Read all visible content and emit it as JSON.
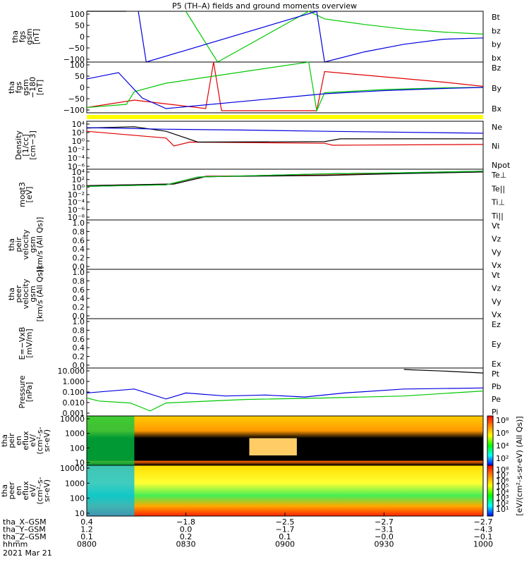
{
  "title": "P5 (TH–A) fields and ground moments overview",
  "colors": {
    "black": "#000000",
    "red": "#e00000",
    "green": "#00c800",
    "blue": "#0000e0",
    "yellow": "#ffff00"
  },
  "chart_data": {
    "type": "line",
    "time_range": [
      "0800",
      "1000"
    ],
    "panels": [
      {
        "id": "fgs",
        "ylabel": [
          "tha",
          "fgs",
          "gsm",
          "[nT]"
        ],
        "yscale": "linear",
        "ylim": [
          -100,
          100
        ],
        "yticks": [
          "100",
          "50",
          "0",
          "−50",
          "−100"
        ],
        "series": [
          {
            "name": "Bt",
            "color": "#000000",
            "points": [
              [
                0.0,
                100
              ],
              [
                0.1,
                100
              ]
            ]
          },
          {
            "name": "bz",
            "color": "#e00000",
            "points": []
          },
          {
            "name": "by",
            "color": "#00c800",
            "points": [
              [
                0.25,
                100
              ],
              [
                0.33,
                -100
              ],
              [
                0.56,
                100
              ],
              [
                0.6,
                70
              ],
              [
                0.7,
                48
              ],
              [
                0.8,
                30
              ],
              [
                0.9,
                18
              ],
              [
                1.0,
                10
              ]
            ]
          },
          {
            "name": "bx",
            "color": "#0000e0",
            "points": [
              [
                0.13,
                100
              ],
              [
                0.15,
                -100
              ],
              [
                0.58,
                100
              ],
              [
                0.6,
                -100
              ],
              [
                0.7,
                -60
              ],
              [
                0.8,
                -30
              ],
              [
                0.9,
                -10
              ],
              [
                1.0,
                -5
              ]
            ]
          }
        ]
      },
      {
        "id": "fgs_dsl",
        "ylabel": [
          "tha",
          "fgs",
          "gsm",
          "−180",
          "[nT]"
        ],
        "yscale": "linear",
        "ylim": [
          -120,
          120
        ],
        "yticks": [
          "100",
          "50",
          "0",
          "−50",
          "−100"
        ],
        "series": [
          {
            "name": "Bz",
            "color": "#e00000",
            "points": [
              [
                0.0,
                -95
              ],
              [
                0.12,
                -60
              ],
              [
                0.3,
                -100
              ],
              [
                0.32,
                120
              ],
              [
                0.34,
                -110
              ],
              [
                0.58,
                -110
              ],
              [
                0.6,
                75
              ],
              [
                0.75,
                50
              ],
              [
                0.9,
                25
              ],
              [
                1.0,
                5
              ]
            ]
          },
          {
            "name": "By",
            "color": "#00c800",
            "points": [
              [
                0.0,
                -95
              ],
              [
                0.1,
                -80
              ],
              [
                0.12,
                -20
              ],
              [
                0.2,
                20
              ],
              [
                0.56,
                120
              ],
              [
                0.58,
                -110
              ],
              [
                0.6,
                -25
              ],
              [
                0.75,
                -10
              ],
              [
                0.9,
                -2
              ],
              [
                1.0,
                0
              ]
            ]
          },
          {
            "name": "Bx",
            "color": "#0000e0",
            "points": [
              [
                0.0,
                40
              ],
              [
                0.08,
                70
              ],
              [
                0.14,
                -50
              ],
              [
                0.2,
                -100
              ],
              [
                0.6,
                -30
              ],
              [
                0.75,
                -15
              ],
              [
                0.9,
                -5
              ],
              [
                1.0,
                0
              ]
            ]
          }
        ]
      },
      {
        "id": "density",
        "ylabel": [
          "Density",
          "[1/cc]",
          "[cm−3]"
        ],
        "yscale": "log",
        "ylim_exp": [
          -7,
          5
        ],
        "yticks": [
          "10⁴",
          "10²",
          "10⁰",
          "10⁻²",
          "10⁻⁴",
          "10⁻⁶"
        ],
        "series": [
          {
            "name": "Ne",
            "color": "#e00000",
            "points": [
              [
                0.0,
                2.5
              ],
              [
                0.2,
                0.8
              ],
              [
                0.22,
                -1.2
              ],
              [
                0.26,
                -0.2
              ],
              [
                0.6,
                -0.5
              ],
              [
                0.62,
                -1.0
              ],
              [
                1.0,
                -0.8
              ]
            ]
          },
          {
            "name": "Ni",
            "color": "#000000",
            "points": [
              [
                0.0,
                3.3
              ],
              [
                0.12,
                3.6
              ],
              [
                0.2,
                2.5
              ],
              [
                0.28,
                -0.2
              ],
              [
                0.6,
                -0.1
              ],
              [
                0.64,
                0.6
              ],
              [
                1.0,
                0.6
              ]
            ]
          },
          {
            "name": "Npot",
            "color": "#0000e0",
            "points": [
              [
                0.0,
                3.4
              ],
              [
                0.2,
                3.0
              ],
              [
                0.4,
                2.8
              ],
              [
                0.6,
                2.5
              ],
              [
                1.0,
                2.0
              ]
            ]
          }
        ]
      },
      {
        "id": "temperature",
        "ylabel": [
          "moqt3",
          "[eV]"
        ],
        "yscale": "log",
        "ylim_exp": [
          -8,
          5
        ],
        "yticks": [
          "10⁴",
          "10²",
          "10⁰",
          "10⁻²",
          "10⁻⁴",
          "10⁻⁶",
          "10⁻⁸"
        ],
        "series": [
          {
            "name": "Te⊥",
            "color": "#e00000",
            "points": [
              [
                0.0,
                0.8
              ],
              [
                0.22,
                1.2
              ],
              [
                0.3,
                3.2
              ],
              [
                0.6,
                3.5
              ],
              [
                0.8,
                4.0
              ],
              [
                1.0,
                4.3
              ]
            ]
          },
          {
            "name": "Te||",
            "color": "#000000",
            "points": [
              [
                0.0,
                0.8
              ],
              [
                0.22,
                1.2
              ],
              [
                0.3,
                3.1
              ],
              [
                0.6,
                3.4
              ],
              [
                0.8,
                3.9
              ],
              [
                1.0,
                4.3
              ]
            ]
          },
          {
            "name": "Ti⊥",
            "color": "#0000e0",
            "points": [
              [
                0.0,
                0.6
              ],
              [
                0.2,
                1.0
              ],
              [
                0.28,
                3.0
              ],
              [
                0.6,
                3.8
              ],
              [
                0.8,
                4.1
              ],
              [
                1.0,
                4.5
              ]
            ]
          },
          {
            "name": "Ti||",
            "color": "#00c800",
            "points": [
              [
                0.0,
                0.6
              ],
              [
                0.2,
                1.0
              ],
              [
                0.28,
                3.0
              ],
              [
                0.6,
                3.8
              ],
              [
                0.8,
                4.1
              ],
              [
                1.0,
                4.5
              ]
            ]
          }
        ]
      },
      {
        "id": "peir_velocity",
        "ylabel": [
          "tha",
          "peir",
          "velocity",
          "gsm",
          "[km/s (All Qs)]"
        ],
        "yscale": "linear",
        "ylim": [
          0,
          1
        ],
        "yticks": [
          "1.0",
          "0.8",
          "0.6",
          "0.4",
          "0.2",
          "0.0"
        ],
        "series": [
          {
            "name": "Vt",
            "color": "#000000",
            "points": []
          },
          {
            "name": "Vz",
            "color": "#e00000",
            "points": []
          },
          {
            "name": "Vy",
            "color": "#00c800",
            "points": []
          },
          {
            "name": "Vx",
            "color": "#0000e0",
            "points": []
          }
        ]
      },
      {
        "id": "peer_velocity",
        "ylabel": [
          "tha",
          "peer",
          "velocity",
          "gsm",
          "[km/s (All Qs)]"
        ],
        "yscale": "linear",
        "ylim": [
          0,
          1
        ],
        "yticks": [
          "1.0",
          "0.8",
          "0.6",
          "0.4",
          "0.2",
          "0.0"
        ],
        "series": [
          {
            "name": "Vt",
            "color": "#000000",
            "points": []
          },
          {
            "name": "Vz",
            "color": "#e00000",
            "points": []
          },
          {
            "name": "Vy",
            "color": "#00c800",
            "points": []
          },
          {
            "name": "Vx",
            "color": "#0000e0",
            "points": []
          }
        ]
      },
      {
        "id": "efield",
        "ylabel": [
          "E=−VxB",
          "[mV/m]"
        ],
        "yscale": "linear",
        "ylim": [
          0,
          1
        ],
        "yticks": [
          "1.0",
          "0.8",
          "0.6",
          "0.4",
          "0.2",
          "0.0"
        ],
        "series": [
          {
            "name": "Ez",
            "color": "#e00000",
            "points": []
          },
          {
            "name": "Ey",
            "color": "#00c800",
            "points": []
          },
          {
            "name": "Ex",
            "color": "#0000e0",
            "points": []
          }
        ]
      },
      {
        "id": "pressure",
        "ylabel": [
          "Pressure",
          "[nPa]"
        ],
        "yscale": "log",
        "ylim_exp": [
          -3.3,
          1.5
        ],
        "yticks": [
          "10.000",
          "1.000",
          "0.100",
          "0.010",
          "0.001"
        ],
        "series": [
          {
            "name": "Pt",
            "color": "#000000",
            "points": [
              [
                0.8,
                1.35
              ],
              [
                0.9,
                1.2
              ],
              [
                1.0,
                1.0
              ]
            ]
          },
          {
            "name": "Pb",
            "color": "#e00000",
            "points": []
          },
          {
            "name": "Pe",
            "color": "#00c800",
            "points": [
              [
                0.0,
                -1.5
              ],
              [
                0.03,
                -1.8
              ],
              [
                0.11,
                -2.0
              ],
              [
                0.16,
                -2.8
              ],
              [
                0.2,
                -2.0
              ],
              [
                0.4,
                -1.65
              ],
              [
                0.6,
                -1.5
              ],
              [
                0.8,
                -1.3
              ],
              [
                1.0,
                -0.8
              ]
            ]
          },
          {
            "name": "Pi",
            "color": "#0000e0",
            "points": [
              [
                0.0,
                -1.0
              ],
              [
                0.12,
                -0.6
              ],
              [
                0.2,
                -1.6
              ],
              [
                0.25,
                -1.0
              ],
              [
                0.35,
                -1.3
              ],
              [
                0.45,
                -1.2
              ],
              [
                0.55,
                -1.4
              ],
              [
                0.65,
                -1.0
              ],
              [
                0.8,
                -0.6
              ],
              [
                1.0,
                -0.5
              ]
            ]
          }
        ]
      },
      {
        "id": "peir_eflux",
        "type": "heatmap",
        "ylabel": [
          "tha",
          "peir",
          "en",
          "eflux",
          "eV/",
          "(cm²-s-",
          "sr-eV)"
        ],
        "yticks": [
          "10000",
          "1000",
          "100",
          "10"
        ]
      },
      {
        "id": "peer_eflux",
        "type": "heatmap",
        "ylabel": [
          "tha",
          "peer",
          "en",
          "eflux",
          "eV/",
          "(cm²-s-",
          "sr-eV)"
        ],
        "yticks": [
          "10000",
          "1000",
          "100",
          "10"
        ]
      }
    ],
    "colorbar": {
      "label": "[eV/(cm²-s-sr-eV) (All Qs)]",
      "upper_ticks": [
        "10⁸",
        "10⁶",
        "10⁴",
        "10²"
      ],
      "lower_ticks": [
        "10⁸",
        "10⁷",
        "10⁶",
        "10⁵",
        "10⁴",
        "10³",
        "10²",
        "10¹"
      ]
    },
    "ephemeris": {
      "rows": [
        {
          "label": "tha_X–GSM",
          "values": [
            "0.4",
            "−1.8",
            "−2.5",
            "−2.7",
            "−2.7"
          ]
        },
        {
          "label": "tha_Y–GSM",
          "values": [
            "1.2",
            "0.0",
            "−1.7",
            "−3.1",
            "−4.3"
          ]
        },
        {
          "label": "tha_Z–GSM",
          "values": [
            "0.1",
            "0.2",
            "0.1",
            "−0.0",
            "−0.1"
          ]
        },
        {
          "label": "hhmm",
          "values": [
            "0800",
            "0830",
            "0900",
            "0930",
            "1000"
          ]
        }
      ],
      "date": "2021 Mar 21"
    }
  }
}
